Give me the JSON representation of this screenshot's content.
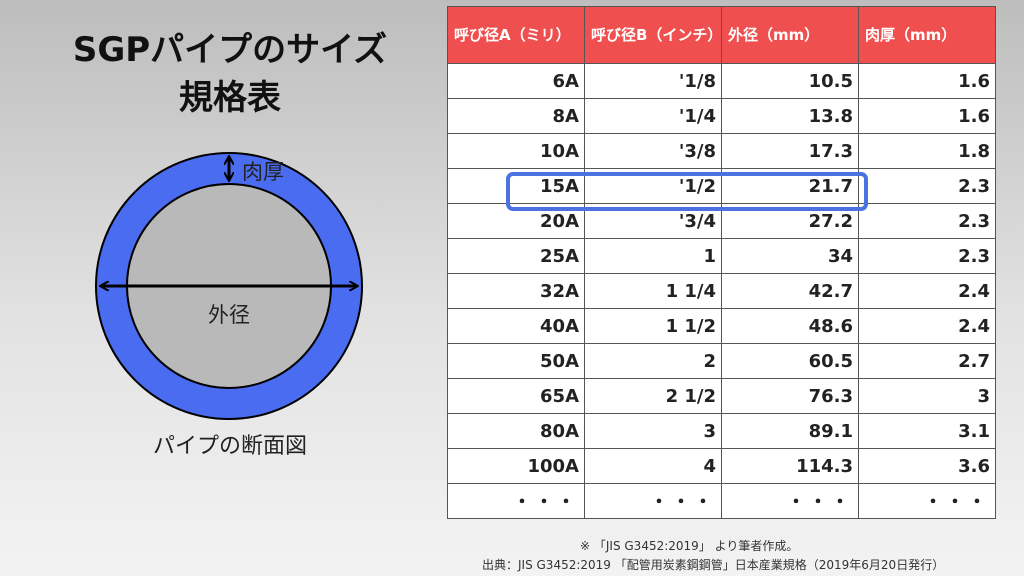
{
  "title": {
    "line1": "SGPパイプのサイズ",
    "line2": "規格表"
  },
  "diagram": {
    "thickness_label": "肉厚",
    "outer_diameter_label": "外径",
    "caption": "パイプの断面図",
    "colors": {
      "ring": "#4a6cf0",
      "inner": "#b9b9b9",
      "stroke": "#000000"
    }
  },
  "table": {
    "headers": [
      "呼び径A（ミリ）",
      "呼び径B（インチ）",
      "外径（mm）",
      "肉厚（mm）"
    ],
    "rows": [
      [
        "6A",
        "'1/8",
        "10.5",
        "1.6"
      ],
      [
        "8A",
        "'1/4",
        "13.8",
        "1.6"
      ],
      [
        "10A",
        "'3/8",
        "17.3",
        "1.8"
      ],
      [
        "15A",
        "'1/2",
        "21.7",
        "2.3"
      ],
      [
        "20A",
        "'3/4",
        "27.2",
        "2.3"
      ],
      [
        "25A",
        "1",
        "34",
        "2.3"
      ],
      [
        "32A",
        "1 1/4",
        "42.7",
        "2.4"
      ],
      [
        "40A",
        "1 1/2",
        "48.6",
        "2.4"
      ],
      [
        "50A",
        "2",
        "60.5",
        "2.7"
      ],
      [
        "65A",
        "2 1/2",
        "76.3",
        "3"
      ],
      [
        "80A",
        "3",
        "89.1",
        "3.1"
      ],
      [
        "100A",
        "4",
        "114.3",
        "3.6"
      ],
      [
        "・・・",
        "・・・",
        "・・・",
        "・・・"
      ]
    ],
    "highlighted_row": "15A",
    "header_color": "#f04f4f",
    "highlight_color": "#4a72e0"
  },
  "note": "※ 「JIS G3452:2019」 より筆者作成。",
  "source": "出典：JIS G3452:2019 「配管用炭素鋼鋼管」日本産業規格（2019年6月20日発行）"
}
